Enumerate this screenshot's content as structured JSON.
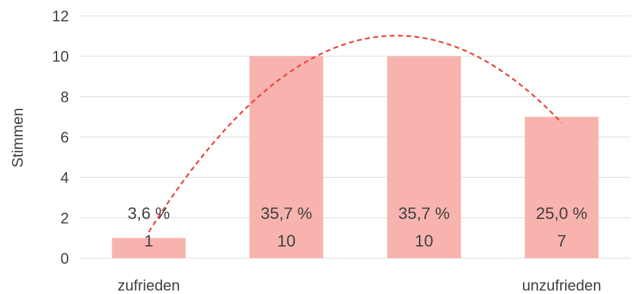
{
  "chart_data": {
    "type": "bar",
    "ylabel": "Stimmen",
    "ylim": [
      0,
      12
    ],
    "yticks": [
      0,
      2,
      4,
      6,
      8,
      10,
      12
    ],
    "grid": true,
    "bar_color": "#f8b3ae",
    "trend_color": "#e84a3e",
    "categories": [
      "zufrieden",
      "",
      "",
      "unzufrieden"
    ],
    "values": [
      1,
      10,
      10,
      7
    ],
    "percent_labels": [
      "3,6 %",
      "35,7 %",
      "35,7 %",
      "25,0 %"
    ],
    "count_labels": [
      "1",
      "10",
      "10",
      "7"
    ],
    "trendline": {
      "type": "polynomial",
      "style": "dashed"
    }
  }
}
